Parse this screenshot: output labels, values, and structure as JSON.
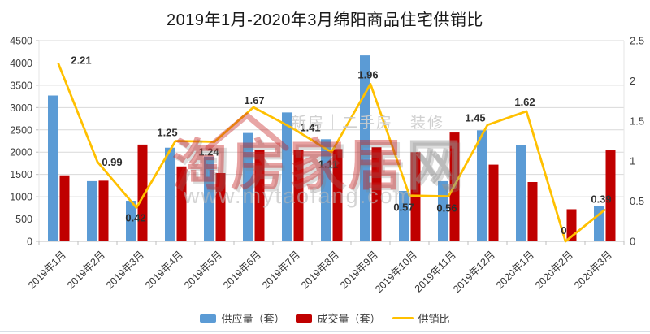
{
  "title": "2019年1月-2020年3月绵阳商品住宅供销比",
  "watermark": {
    "tagline": "新房｜二手房｜装修",
    "logo_red": "淘房家居",
    "logo_gray": "网",
    "url": "www.mytaofang.com"
  },
  "colors": {
    "supply_bar": "#5B9BD5",
    "deal_bar": "#C00000",
    "ratio_line": "#FFC000",
    "gridline": "#D9D9D9",
    "axis_line": "#BFBFBF"
  },
  "chart_data": {
    "type": "bar+line",
    "title": "2019年1月-2020年3月绵阳商品住宅供销比",
    "categories": [
      "2019年1月",
      "2019年2月",
      "2019年3月",
      "2019年4月",
      "2019年5月",
      "2019年6月",
      "2019年7月",
      "2019年8月",
      "2019年9月",
      "2019年10月",
      "2019年11月",
      "2019年12月",
      "2020年1月",
      "2020年2月",
      "2020年3月"
    ],
    "series": [
      {
        "name": "供应量（套）",
        "type": "bar",
        "axis": "left",
        "color": "#5B9BD5",
        "values": [
          3270,
          1350,
          910,
          2100,
          1900,
          2430,
          2890,
          2290,
          4170,
          1130,
          1350,
          2490,
          2160,
          0,
          790
        ]
      },
      {
        "name": "成交量（套）",
        "type": "bar",
        "axis": "left",
        "color": "#C00000",
        "values": [
          1480,
          1360,
          2170,
          1680,
          1530,
          2050,
          2050,
          2070,
          2110,
          2000,
          2440,
          1720,
          1330,
          720,
          2040
        ]
      },
      {
        "name": "供销比",
        "type": "line",
        "axis": "right",
        "color": "#FFC000",
        "values": [
          2.21,
          0.99,
          0.42,
          1.25,
          1.24,
          1.67,
          1.41,
          1.11,
          1.96,
          0.57,
          0.56,
          1.45,
          1.62,
          0,
          0.39
        ],
        "labels": [
          "2.21",
          "0.99",
          "0.42",
          "1.25",
          "1.24",
          "1.67",
          "1.41",
          "1.11",
          "1.96",
          "0.57",
          "0.56",
          "1.45",
          "1.62",
          "0",
          "0.39"
        ]
      }
    ],
    "left_axis": {
      "min": 0,
      "max": 4500,
      "step": 500,
      "ticks": [
        "0",
        "500",
        "1000",
        "1500",
        "2000",
        "2500",
        "3000",
        "3500",
        "4000",
        "4500"
      ]
    },
    "right_axis": {
      "min": 0,
      "max": 2.5,
      "step": 0.5,
      "ticks": [
        "0",
        "0.5",
        "1",
        "1.5",
        "2",
        "2.5"
      ]
    },
    "grid": true,
    "legend_position": "bottom"
  }
}
